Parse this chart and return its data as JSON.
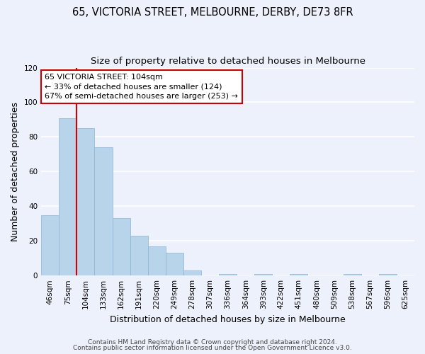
{
  "title": "65, VICTORIA STREET, MELBOURNE, DERBY, DE73 8FR",
  "subtitle": "Size of property relative to detached houses in Melbourne",
  "xlabel": "Distribution of detached houses by size in Melbourne",
  "ylabel": "Number of detached properties",
  "bin_labels": [
    "46sqm",
    "75sqm",
    "104sqm",
    "133sqm",
    "162sqm",
    "191sqm",
    "220sqm",
    "249sqm",
    "278sqm",
    "307sqm",
    "336sqm",
    "364sqm",
    "393sqm",
    "422sqm",
    "451sqm",
    "480sqm",
    "509sqm",
    "538sqm",
    "567sqm",
    "596sqm",
    "625sqm"
  ],
  "bar_heights": [
    35,
    91,
    85,
    74,
    33,
    23,
    17,
    13,
    3,
    0,
    1,
    0,
    1,
    0,
    1,
    0,
    0,
    1,
    0,
    1,
    0
  ],
  "bar_color": "#b8d4eb",
  "highlight_index": 2,
  "highlight_line_color": "#cc0000",
  "ylim": [
    0,
    120
  ],
  "yticks": [
    0,
    20,
    40,
    60,
    80,
    100,
    120
  ],
  "annotation_text": "65 VICTORIA STREET: 104sqm\n← 33% of detached houses are smaller (124)\n67% of semi-detached houses are larger (253) →",
  "annotation_box_color": "#ffffff",
  "annotation_box_edge_color": "#cc0000",
  "footer_line1": "Contains HM Land Registry data © Crown copyright and database right 2024.",
  "footer_line2": "Contains public sector information licensed under the Open Government Licence v3.0.",
  "bg_color": "#edf1fb",
  "plot_bg_color": "#edf1fb",
  "grid_color": "#ffffff",
  "title_fontsize": 10.5,
  "subtitle_fontsize": 9.5,
  "axis_label_fontsize": 9,
  "tick_fontsize": 7.5,
  "annotation_fontsize": 8,
  "footer_fontsize": 6.5
}
